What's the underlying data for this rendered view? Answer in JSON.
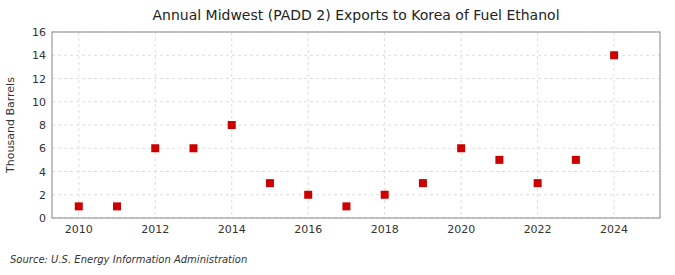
{
  "chart_data": {
    "type": "scatter",
    "title": "Annual Midwest (PADD 2) Exports to Korea of Fuel Ethanol",
    "y_label": "Thousand Barrels",
    "source": "Source: U.S. Energy Information Administration",
    "x": [
      2010,
      2011,
      2012,
      2013,
      2014,
      2015,
      2016,
      2017,
      2018,
      2019,
      2020,
      2021,
      2022,
      2023,
      2024
    ],
    "values": [
      1,
      1,
      6,
      6,
      8,
      3,
      2,
      1,
      2,
      3,
      6,
      5,
      3,
      5,
      14
    ],
    "color": "#cc0000",
    "marker": "square",
    "xlim": [
      2009.3,
      2025.2
    ],
    "ylim": [
      0,
      16
    ],
    "xticks": [
      2010,
      2012,
      2014,
      2016,
      2018,
      2020,
      2022,
      2024
    ],
    "yticks": [
      0,
      2,
      4,
      6,
      8,
      10,
      12,
      14,
      16
    ],
    "grid": true
  }
}
